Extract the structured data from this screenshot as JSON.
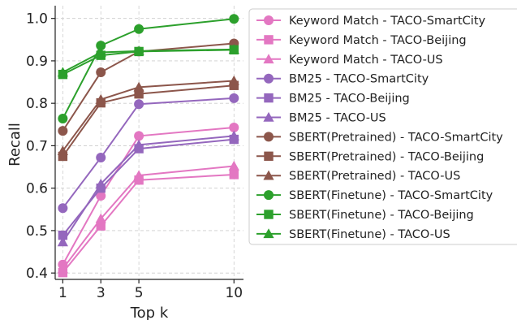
{
  "chart_data": {
    "type": "line",
    "title": "",
    "xlabel": "Top k",
    "ylabel": "Recall",
    "x": [
      1,
      3,
      5,
      10
    ],
    "xticks": [
      "1",
      "3",
      "5",
      "10"
    ],
    "yticks": [
      "0.4",
      "0.5",
      "0.6",
      "0.7",
      "0.8",
      "0.9",
      "1.0"
    ],
    "xlim": [
      0.6,
      10.5
    ],
    "ylim": [
      0.385,
      1.03
    ],
    "grid": true,
    "legend_position": "right",
    "colors": {
      "keyword": "#e377c2",
      "bm25": "#9467bd",
      "sbert_pretrained": "#8c564b",
      "sbert_finetune": "#2ca02c"
    },
    "series": [
      {
        "name": "Keyword Match - TACO-SmartCity",
        "color": "#e377c2",
        "marker": "circle",
        "values": [
          0.42,
          0.582,
          0.723,
          0.743
        ]
      },
      {
        "name": "Keyword Match - TACO-Beijing",
        "color": "#e377c2",
        "marker": "square",
        "values": [
          0.401,
          0.511,
          0.619,
          0.632
        ]
      },
      {
        "name": "Keyword Match - TACO-US",
        "color": "#e377c2",
        "marker": "triangle",
        "values": [
          0.41,
          0.528,
          0.63,
          0.652
        ]
      },
      {
        "name": "BM25 - TACO-SmartCity",
        "color": "#9467bd",
        "marker": "circle",
        "values": [
          0.553,
          0.672,
          0.798,
          0.812
        ]
      },
      {
        "name": "BM25 - TACO-Beijing",
        "color": "#9467bd",
        "marker": "square",
        "values": [
          0.489,
          0.6,
          0.693,
          0.715
        ]
      },
      {
        "name": "BM25 - TACO-US",
        "color": "#9467bd",
        "marker": "triangle",
        "values": [
          0.473,
          0.61,
          0.702,
          0.723
        ]
      },
      {
        "name": "SBERT(Pretrained) - TACO-SmartCity",
        "color": "#8c564b",
        "marker": "circle",
        "values": [
          0.735,
          0.873,
          0.922,
          0.941
        ]
      },
      {
        "name": "SBERT(Pretrained) - TACO-Beijing",
        "color": "#8c564b",
        "marker": "square",
        "values": [
          0.675,
          0.801,
          0.822,
          0.842
        ]
      },
      {
        "name": "SBERT(Pretrained) - TACO-US",
        "color": "#8c564b",
        "marker": "triangle",
        "values": [
          0.688,
          0.809,
          0.838,
          0.853
        ]
      },
      {
        "name": "SBERT(Finetune) - TACO-SmartCity",
        "color": "#2ca02c",
        "marker": "circle",
        "values": [
          0.764,
          0.936,
          0.975,
          0.999
        ]
      },
      {
        "name": "SBERT(Finetune) - TACO-Beijing",
        "color": "#2ca02c",
        "marker": "square",
        "values": [
          0.868,
          0.913,
          0.922,
          0.926
        ]
      },
      {
        "name": "SBERT(Finetune) - TACO-US",
        "color": "#2ca02c",
        "marker": "triangle",
        "values": [
          0.873,
          0.92,
          0.923,
          0.927
        ]
      }
    ]
  }
}
